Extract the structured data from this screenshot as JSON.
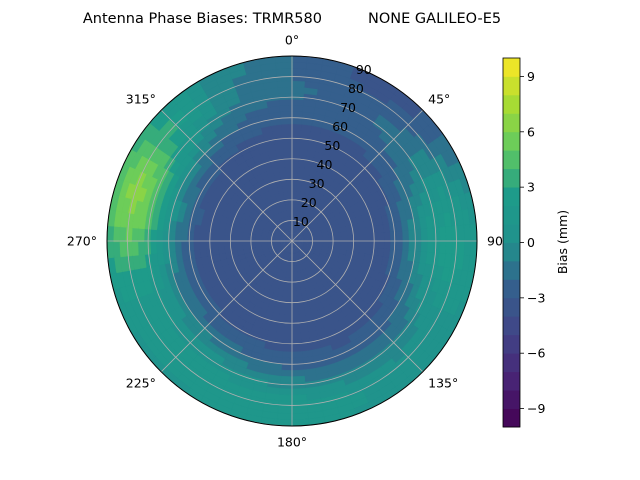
{
  "chart_data": {
    "type": "polar_contour",
    "title": "Antenna Phase Biases: TRMR580          NONE GALILEO-E5",
    "angle_ticks": [
      "0°",
      "45°",
      "90°",
      "135°",
      "180°",
      "225°",
      "270°",
      "315°"
    ],
    "radial_ticks": [
      "10",
      "20",
      "30",
      "40",
      "50",
      "60",
      "70",
      "80",
      "90"
    ],
    "radial_range": [
      0,
      90
    ],
    "grid": true,
    "colorbar": {
      "label": "Bias (mm)",
      "range": [
        -10,
        10
      ],
      "ticks": [
        "−9",
        "−6",
        "−3",
        "0",
        "3",
        "6",
        "9"
      ],
      "tick_values": [
        -9,
        -6,
        -3,
        0,
        3,
        6,
        9
      ],
      "colormap": "viridis",
      "levels": 20
    },
    "field_description_regions": [
      {
        "azimuth_range": [
          250,
          320
        ],
        "elevation_range": [
          0,
          30
        ],
        "bias_mm": 5
      },
      {
        "azimuth_range": [
          0,
          60
        ],
        "elevation_range": [
          0,
          15
        ],
        "bias_mm": -3
      },
      {
        "azimuth_range": [
          60,
          120
        ],
        "elevation_range": [
          0,
          30
        ],
        "bias_mm": 1.5
      },
      {
        "azimuth_range": [
          0,
          360
        ],
        "elevation_range": [
          40,
          80
        ],
        "bias_mm": -2.5
      }
    ]
  }
}
